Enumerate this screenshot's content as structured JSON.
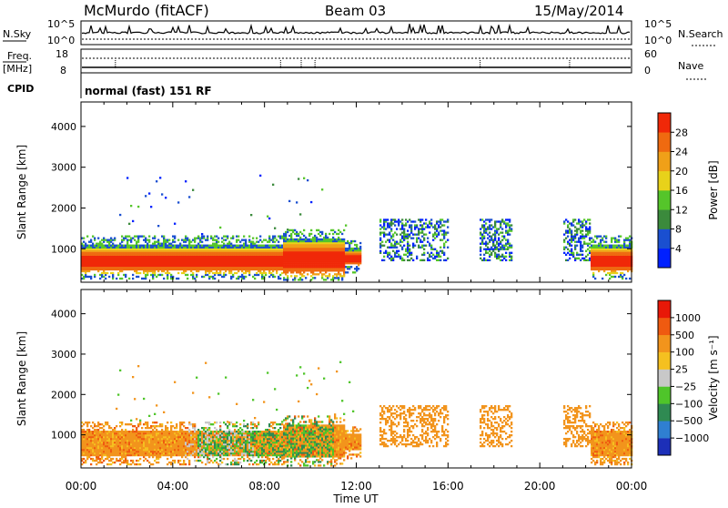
{
  "header": {
    "station": "McMurdo (fitACF)",
    "beam": "Beam 03",
    "date": "15/May/2014"
  },
  "panels": {
    "nsky": {
      "left_label": "N.Sky",
      "left_ticks": [
        "10^5",
        "10^0"
      ],
      "right_label": "N.Search",
      "right_ticks": [
        "10^5",
        "10^0"
      ]
    },
    "freq": {
      "left_label_1": "Freq.",
      "left_label_2": "[MHz]",
      "left_ticks": [
        "18",
        "8"
      ],
      "right_label": "Nave",
      "right_ticks": [
        "60",
        "0"
      ]
    },
    "cpid": {
      "label": "CPID",
      "text": "normal (fast) 151 RF"
    }
  },
  "chart_data": [
    {
      "type": "heatmap",
      "variable": "power",
      "ylabel": "Slant Range [km]",
      "yticks": [
        "1000",
        "2000",
        "3000",
        "4000"
      ],
      "ylim": [
        180,
        4600
      ],
      "xlim": [
        0,
        24
      ],
      "colorbar": {
        "label": "Power [dB]",
        "range": [
          0,
          32
        ],
        "tick_labels": [
          "4",
          "8",
          "12",
          "16",
          "20",
          "24",
          "28"
        ],
        "colors": [
          "#0020ff",
          "#1a4fd0",
          "#3b8a3c",
          "#55c52a",
          "#e8d21a",
          "#f0a018",
          "#ef6a10",
          "#f02808"
        ]
      }
    },
    {
      "type": "heatmap",
      "variable": "velocity",
      "ylabel": "Slant Range [km]",
      "yticks": [
        "1000",
        "2000",
        "3000",
        "4000"
      ],
      "ylim": [
        180,
        4600
      ],
      "xlim": [
        0,
        24
      ],
      "colorbar": {
        "label": "Velocity [m s⁻¹]",
        "tick_labels": [
          "1000",
          "500",
          "100",
          "25",
          "−25",
          "−100",
          "−500",
          "−1000"
        ],
        "colors": [
          "#1c2fb8",
          "#2f7fd1",
          "#2f8a52",
          "#4fc52a",
          "#c8c8c8",
          "#f5c020",
          "#f2941c",
          "#ef5a10",
          "#e81808"
        ]
      }
    }
  ],
  "xaxis": {
    "ticks": [
      "00:00",
      "04:00",
      "08:00",
      "12:00",
      "16:00",
      "20:00",
      "00:00"
    ],
    "label": "Time UT"
  }
}
